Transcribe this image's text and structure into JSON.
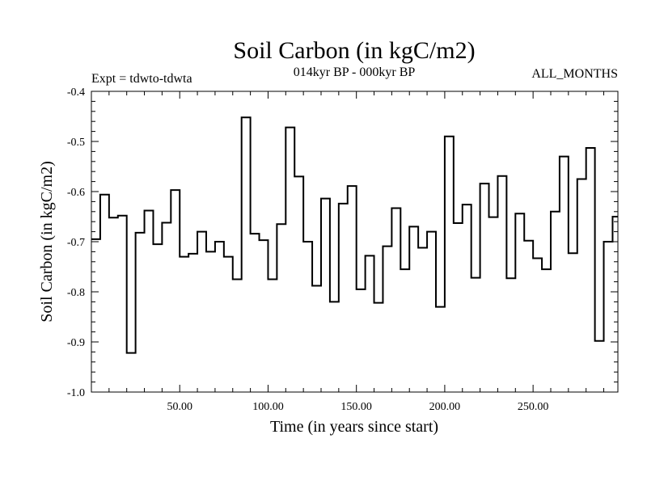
{
  "chart_data": {
    "type": "line",
    "style": "step",
    "title": "Soil Carbon (in kgC/m2)",
    "subtitle": "014kyr BP - 000kyr BP",
    "expt_label": "Expt = tdwto-tdwta",
    "period_label": "ALL_MONTHS",
    "xlabel": "Time (in years since start)",
    "ylabel": "Soil Carbon (in kgC/m2)",
    "xlim": [
      0,
      298
    ],
    "ylim": [
      -1.0,
      -0.4
    ],
    "x_ticks": [
      50,
      100,
      150,
      200,
      250
    ],
    "x_tick_labels": [
      "50.00",
      "100.00",
      "150.00",
      "200.00",
      "250.00"
    ],
    "y_ticks": [
      -0.4,
      -0.5,
      -0.6,
      -0.7,
      -0.8,
      -0.9,
      -1.0
    ],
    "y_tick_labels": [
      "-0.4",
      "-0.5",
      "-0.6",
      "-0.7",
      "-0.8",
      "-0.9",
      "-1.0"
    ],
    "series": [
      {
        "name": "Soil Carbon",
        "x": [
          0,
          5,
          10,
          15,
          20,
          25,
          30,
          35,
          40,
          45,
          50,
          55,
          60,
          65,
          70,
          75,
          80,
          85,
          90,
          95,
          100,
          105,
          110,
          115,
          120,
          125,
          130,
          135,
          140,
          145,
          150,
          155,
          160,
          165,
          170,
          175,
          180,
          185,
          190,
          195,
          200,
          205,
          210,
          215,
          220,
          225,
          230,
          235,
          240,
          245,
          250,
          255,
          260,
          265,
          270,
          275,
          280,
          285,
          290,
          295
        ],
        "values": [
          -0.695,
          -0.606,
          -0.652,
          -0.648,
          -0.922,
          -0.682,
          -0.638,
          -0.705,
          -0.662,
          -0.597,
          -0.73,
          -0.724,
          -0.68,
          -0.72,
          -0.7,
          -0.73,
          -0.775,
          -0.452,
          -0.684,
          -0.697,
          -0.775,
          -0.665,
          -0.472,
          -0.57,
          -0.7,
          -0.788,
          -0.614,
          -0.82,
          -0.624,
          -0.589,
          -0.795,
          -0.728,
          -0.822,
          -0.709,
          -0.633,
          -0.755,
          -0.67,
          -0.712,
          -0.68,
          -0.83,
          -0.49,
          -0.663,
          -0.626,
          -0.772,
          -0.584,
          -0.651,
          -0.569,
          -0.773,
          -0.644,
          -0.698,
          -0.733,
          -0.755,
          -0.64,
          -0.53,
          -0.723,
          -0.575,
          -0.513,
          -0.898,
          -0.7,
          -0.65
        ]
      }
    ]
  }
}
